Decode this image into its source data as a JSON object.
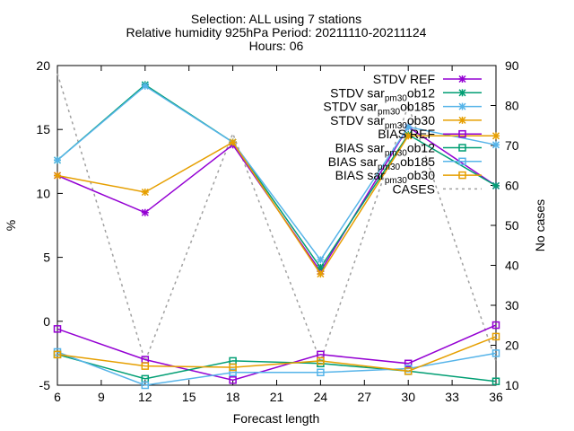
{
  "title_lines": [
    "Selection: ALL using     7 stations",
    "Relative humidity 925hPa   Period: 20211110-20211124",
    "Hours: 06"
  ],
  "chart_data": {
    "type": "line",
    "xlabel": "Forecast length",
    "ylabel": "%",
    "y2label": "No cases",
    "xlim": [
      6,
      36
    ],
    "ylim": [
      -5,
      20
    ],
    "y2lim": [
      10,
      90
    ],
    "xticks": [
      6,
      9,
      12,
      15,
      18,
      21,
      24,
      27,
      30,
      33,
      36
    ],
    "yticks": [
      -5,
      0,
      5,
      10,
      15,
      20
    ],
    "y2ticks": [
      10,
      20,
      30,
      40,
      50,
      60,
      70,
      80,
      90
    ],
    "grid": false,
    "legend_position": "top-right",
    "x": [
      6,
      12,
      18,
      24,
      30,
      36
    ],
    "series": [
      {
        "name": "STDV REF",
        "color": "#9400d3",
        "marker": "x",
        "axis": "y",
        "values": [
          11.4,
          8.5,
          13.8,
          3.9,
          15.2,
          10.6
        ]
      },
      {
        "name": "STDV sar_pm30_ob12",
        "label_main": "STDV sar",
        "label_sub": "pm30",
        "label_rest": "ob12",
        "color": "#009e73",
        "marker": "x",
        "axis": "y",
        "values": [
          12.6,
          18.5,
          14.0,
          4.2,
          14.6,
          10.6
        ]
      },
      {
        "name": "STDV sar_pm30_ob185",
        "label_main": "STDV sar",
        "label_sub": "pm30",
        "label_rest": "ob185",
        "color": "#56b4e9",
        "marker": "x",
        "axis": "y",
        "values": [
          12.6,
          18.4,
          14.0,
          4.8,
          15.2,
          13.8
        ]
      },
      {
        "name": "STDV sar_pm30_ob30",
        "label_main": "STDV sar",
        "label_sub": "pm30",
        "label_rest": "ob30",
        "color": "#e69f00",
        "marker": "x",
        "axis": "y",
        "values": [
          11.4,
          10.1,
          14.0,
          3.7,
          14.5,
          14.5
        ]
      },
      {
        "name": "BIAS REF",
        "color": "#9400d3",
        "marker": "square",
        "axis": "y",
        "values": [
          -0.6,
          -3.0,
          -4.6,
          -2.6,
          -3.3,
          -0.3
        ]
      },
      {
        "name": "BIAS sar_pm30_ob12",
        "label_main": "BIAS sar",
        "label_sub": "pm30",
        "label_rest": "ob12",
        "color": "#009e73",
        "marker": "square",
        "axis": "y",
        "values": [
          -2.6,
          -4.5,
          -3.1,
          -3.3,
          -3.9,
          -4.7
        ]
      },
      {
        "name": "BIAS sar_pm30_ob185",
        "label_main": "BIAS sar",
        "label_sub": "pm30",
        "label_rest": "ob185",
        "color": "#56b4e9",
        "marker": "square",
        "axis": "y",
        "values": [
          -2.4,
          -5.0,
          -4.0,
          -4.0,
          -3.7,
          -2.5
        ]
      },
      {
        "name": "BIAS sar_pm30_ob30",
        "label_main": "BIAS sar",
        "label_sub": "pm30",
        "label_rest": "ob30",
        "color": "#e69f00",
        "marker": "square",
        "axis": "y",
        "values": [
          -2.6,
          -3.5,
          -3.6,
          -3.1,
          -3.9,
          -1.2
        ]
      },
      {
        "name": "CASES",
        "color": "#a0a0a0",
        "marker": "none",
        "dash": true,
        "axis": "y2",
        "values": [
          88,
          16,
          73,
          16,
          80,
          16
        ]
      }
    ]
  }
}
